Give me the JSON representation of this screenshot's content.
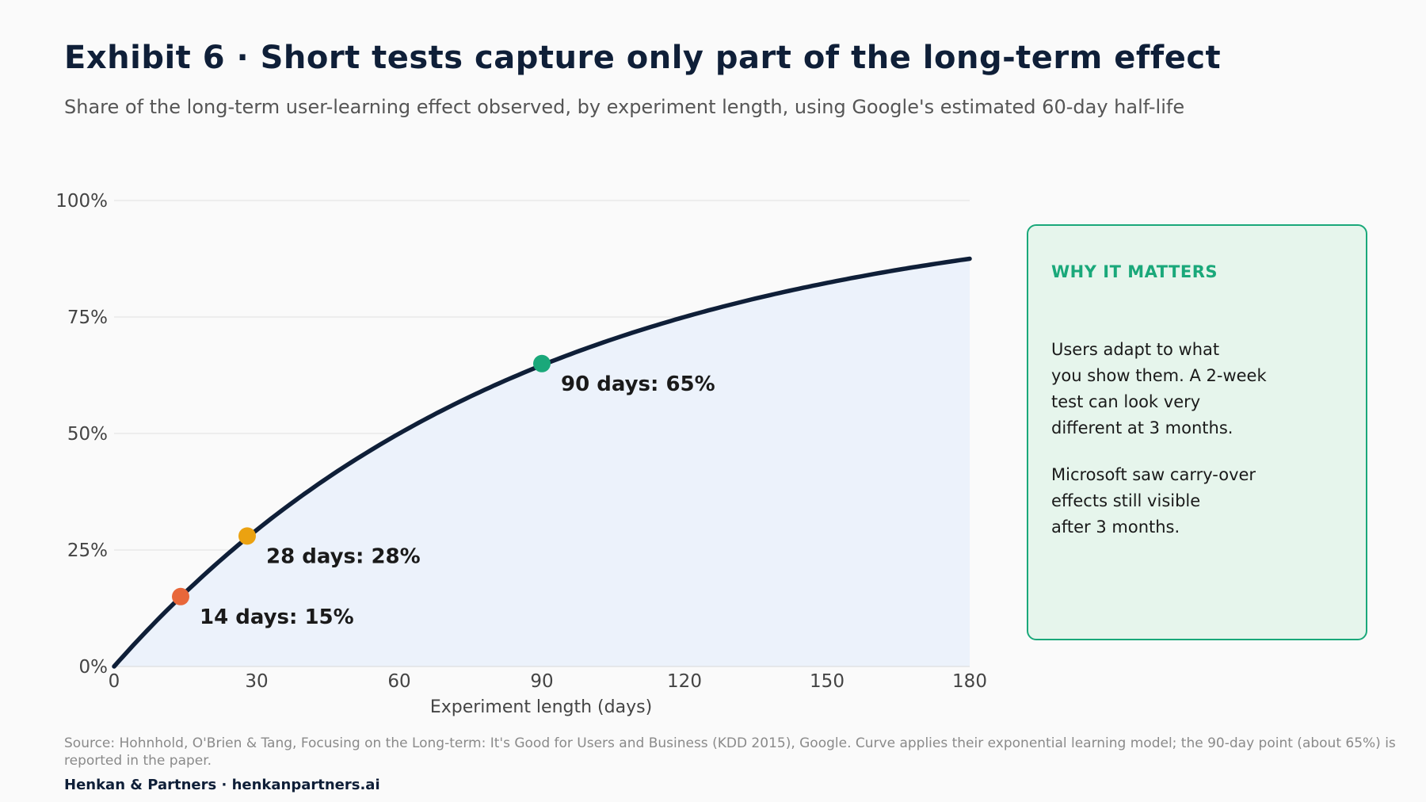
{
  "header": {
    "title": "Exhibit 6 · Short tests capture only part of the long-term effect",
    "subtitle": "Share of the long-term user-learning effect observed, by experiment length, using Google's estimated 60-day half-life"
  },
  "chart_data": {
    "type": "area",
    "xlabel": "Experiment length (days)",
    "ylabel": "",
    "xlim": [
      0,
      180
    ],
    "ylim": [
      0,
      100
    ],
    "x_ticks": [
      0,
      30,
      60,
      90,
      120,
      150,
      180
    ],
    "x_tick_labels": [
      "0",
      "30",
      "60",
      "90",
      "120",
      "150",
      "180"
    ],
    "y_ticks": [
      0,
      25,
      50,
      75,
      100
    ],
    "y_tick_labels": [
      "0%",
      "25%",
      "50%",
      "75%",
      "100%"
    ],
    "grid": "horizontal",
    "curve": {
      "x": [
        0,
        10,
        20,
        30,
        40,
        50,
        60,
        70,
        80,
        90,
        100,
        110,
        120,
        130,
        140,
        150,
        160,
        170,
        180
      ],
      "y": [
        0,
        10.9,
        20.6,
        29.3,
        37.0,
        43.9,
        50.0,
        55.4,
        60.3,
        64.6,
        68.5,
        71.9,
        75.0,
        77.7,
        80.2,
        82.3,
        84.3,
        86.0,
        87.5
      ]
    },
    "highlights": [
      {
        "x": 14,
        "y": 15,
        "label": "14 days: 15%",
        "color": "#e8673a"
      },
      {
        "x": 28,
        "y": 28,
        "label": "28 days: 28%",
        "color": "#eba211"
      },
      {
        "x": 90,
        "y": 65,
        "label": "90 days: 65%",
        "color": "#1aa87a"
      }
    ],
    "colors": {
      "line": "#0f1f38",
      "fill": "#ecf2fb",
      "grid": "#e0e0e0"
    }
  },
  "callout": {
    "title": "WHY IT MATTERS",
    "paragraph1": "Users adapt to what\nyou show them. A 2-week\ntest can look very\ndifferent at 3 months.",
    "paragraph2": "Microsoft saw carry-over\neffects still visible\nafter 3 months."
  },
  "footer": {
    "source": "Source: Hohnhold, O'Brien & Tang, Focusing on the Long-term: It's Good for Users and Business (KDD 2015), Google. Curve applies their exponential learning model; the 90-day point (about 65%) is reported in the paper.",
    "brand": "Henkan & Partners · henkanpartners.ai"
  }
}
